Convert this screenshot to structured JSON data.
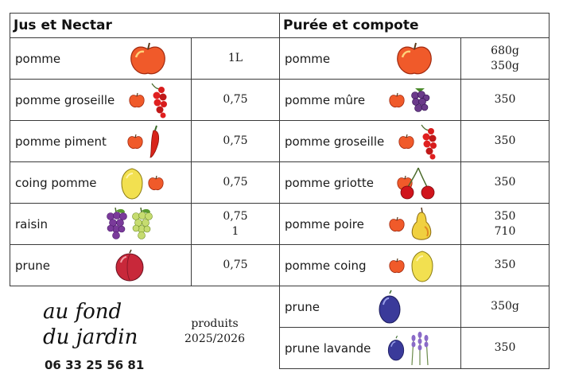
{
  "jus": {
    "title": "Jus et Nectar",
    "rows": [
      {
        "name": "pomme",
        "qty": [
          "1L"
        ],
        "fruits": [
          "apple-big-icon"
        ]
      },
      {
        "name": "pomme groseille",
        "qty": [
          "0,75"
        ],
        "fruits": [
          "apple-icon",
          "redcurrant-icon"
        ]
      },
      {
        "name": "pomme piment",
        "qty": [
          "0,75"
        ],
        "fruits": [
          "apple-icon",
          "chili-pepper-icon"
        ]
      },
      {
        "name": "coing pomme",
        "qty": [
          "0,75"
        ],
        "fruits": [
          "quince-icon",
          "apple-icon"
        ]
      },
      {
        "name": "raisin",
        "qty": [
          "0,75",
          "1"
        ],
        "fruits": [
          "purple-grapes-icon",
          "green-grapes-icon"
        ]
      },
      {
        "name": "prune",
        "qty": [
          "0,75"
        ],
        "fruits": [
          "red-plum-icon"
        ]
      }
    ]
  },
  "puree": {
    "title": "Purée et compote",
    "rows": [
      {
        "name": "pomme",
        "qty": [
          "680g",
          "350g"
        ],
        "fruits": [
          "apple-big-icon"
        ]
      },
      {
        "name": "pomme mûre",
        "qty": [
          "350"
        ],
        "fruits": [
          "apple-icon",
          "blackberry-icon"
        ]
      },
      {
        "name": "pomme groseille",
        "qty": [
          "350"
        ],
        "fruits": [
          "apple-icon",
          "redcurrant-icon"
        ]
      },
      {
        "name": "pomme griotte",
        "qty": [
          "350"
        ],
        "fruits": [
          "apple-icon",
          "cherries-icon"
        ]
      },
      {
        "name": "pomme poire",
        "qty": [
          "350",
          "710"
        ],
        "fruits": [
          "apple-icon",
          "pear-icon"
        ]
      },
      {
        "name": "pomme coing",
        "qty": [
          "350"
        ],
        "fruits": [
          "apple-icon",
          "quince-icon"
        ]
      },
      {
        "name": "prune",
        "qty": [
          "350g"
        ],
        "fruits": [
          "blue-plum-icon"
        ]
      },
      {
        "name": "prune lavande",
        "qty": [
          "350"
        ],
        "fruits": [
          "blue-plum-icon",
          "lavender-icon"
        ]
      }
    ]
  },
  "logo": {
    "line1": "au fond",
    "line2": "du jardin"
  },
  "phone": "06 33 25 56 81",
  "produits": {
    "line1": "produits",
    "line2": "2025/2026"
  }
}
